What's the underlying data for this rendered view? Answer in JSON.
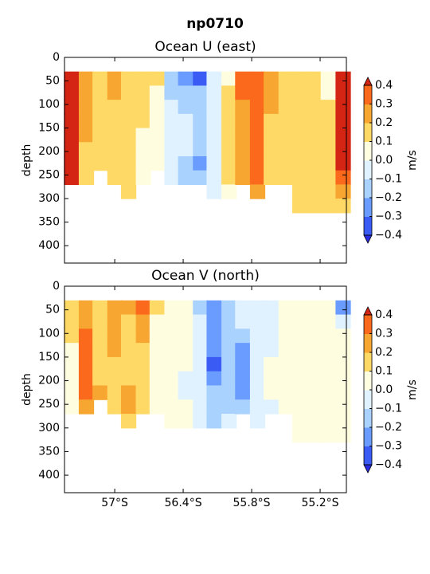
{
  "title": "np0710",
  "chart_data": [
    {
      "type": "contour",
      "title": "Ocean U (east)",
      "y_label": "depth",
      "colorbar_label": "m/s",
      "x": [
        -57.38,
        -57.25,
        -57.13,
        -57.0,
        -56.88,
        -56.75,
        -56.63,
        -56.5,
        -56.38,
        -56.25,
        -56.13,
        -56.0,
        -55.88,
        -55.75,
        -55.63,
        -55.5,
        -55.38,
        -55.25,
        -55.13,
        -55.0
      ],
      "depths": [
        30,
        60,
        90,
        120,
        150,
        180,
        210,
        240,
        270,
        300
      ],
      "values": [
        [
          0.45,
          0.45,
          0.45,
          0.45,
          0.45,
          0.45,
          0.45,
          0.45,
          null,
          null
        ],
        [
          0.25,
          0.25,
          0.25,
          0.25,
          0.25,
          0.15,
          0.15,
          0.15,
          null,
          null
        ],
        [
          0.15,
          0.15,
          0.15,
          0.15,
          0.15,
          0.15,
          0.15,
          null,
          null,
          null
        ],
        [
          0.25,
          0.25,
          0.15,
          0.15,
          0.15,
          0.15,
          0.15,
          0.15,
          null,
          null
        ],
        [
          0.15,
          0.15,
          0.15,
          0.15,
          0.15,
          0.15,
          0.15,
          0.15,
          0.15,
          null
        ],
        [
          0.15,
          0.15,
          0.15,
          0.15,
          0.05,
          0.05,
          0.05,
          0.05,
          null,
          null
        ],
        [
          0.15,
          0.05,
          0.05,
          0.05,
          0.05,
          0.05,
          0.05,
          null,
          null,
          null
        ],
        [
          -0.15,
          -0.15,
          -0.05,
          -0.05,
          -0.05,
          -0.05,
          -0.05,
          -0.05,
          null,
          null
        ],
        [
          -0.25,
          -0.15,
          -0.15,
          -0.05,
          -0.05,
          -0.05,
          -0.15,
          -0.15,
          null,
          null
        ],
        [
          -0.35,
          -0.15,
          -0.15,
          -0.15,
          -0.15,
          -0.15,
          -0.25,
          -0.15,
          null,
          null
        ],
        [
          -0.05,
          -0.05,
          -0.05,
          -0.05,
          -0.05,
          -0.05,
          -0.05,
          -0.05,
          -0.05,
          null
        ],
        [
          0.05,
          0.15,
          0.15,
          0.15,
          0.15,
          0.15,
          0.15,
          0.15,
          0.05,
          null
        ],
        [
          0.35,
          0.35,
          0.25,
          0.25,
          0.25,
          0.25,
          0.25,
          0.25,
          null,
          null
        ],
        [
          0.35,
          0.35,
          0.35,
          0.35,
          0.35,
          0.35,
          0.35,
          0.35,
          0.25,
          null
        ],
        [
          0.25,
          0.25,
          0.25,
          0.15,
          0.15,
          0.15,
          0.15,
          0.15,
          null,
          null
        ],
        [
          0.15,
          0.15,
          0.15,
          0.15,
          0.15,
          0.15,
          0.15,
          0.15,
          null,
          null
        ],
        [
          0.15,
          0.15,
          0.15,
          0.15,
          0.15,
          0.15,
          0.15,
          0.15,
          0.15,
          0.15
        ],
        [
          0.15,
          0.15,
          0.15,
          0.15,
          0.15,
          0.15,
          0.15,
          0.15,
          0.15,
          0.15
        ],
        [
          0.05,
          0.05,
          0.15,
          0.15,
          0.15,
          0.15,
          0.15,
          0.15,
          0.15,
          0.15
        ],
        [
          0.45,
          0.45,
          0.45,
          0.45,
          0.45,
          0.45,
          0.45,
          0.35,
          0.25,
          0.15
        ]
      ],
      "xlim": [
        -57.44,
        -54.97
      ],
      "xticks": [
        -57,
        -56.4,
        -55.8,
        -55.2
      ],
      "ylim": [
        0,
        437
      ],
      "y_inverted": true,
      "yticks": [
        0,
        50,
        100,
        150,
        200,
        250,
        300,
        350,
        400
      ],
      "cticks": [
        {
          "value": -0.4,
          "label": "−0.4"
        },
        {
          "value": -0.3,
          "label": "−0.3"
        },
        {
          "value": -0.2,
          "label": "−0.2"
        },
        {
          "value": -0.1,
          "label": "−0.1"
        },
        {
          "value": 0,
          "label": "0.0"
        },
        0.1,
        0.2,
        0.3,
        0.4
      ],
      "colors": [
        "#3a5cf5",
        "#6a9cff",
        "#aad2ff",
        "#e0f2ff",
        "#fffde0",
        "#ffd966",
        "#f8a632",
        "#fb6a1c"
      ],
      "under_color": "#2a2ae0",
      "over_color": "#d42414"
    },
    {
      "type": "contour",
      "title": "Ocean V (north)",
      "y_label": "depth",
      "colorbar_label": "m/s",
      "x": [
        -57.38,
        -57.25,
        -57.13,
        -57.0,
        -56.88,
        -56.75,
        -56.63,
        -56.5,
        -56.38,
        -56.25,
        -56.13,
        -56.0,
        -55.88,
        -55.75,
        -55.63,
        -55.5,
        -55.38,
        -55.25,
        -55.13,
        -55.0
      ],
      "depths": [
        30,
        60,
        90,
        120,
        150,
        180,
        210,
        240,
        270,
        300
      ],
      "values": [
        [
          0.15,
          0.15,
          0.15,
          0.05,
          0.05,
          0.05,
          0.05,
          0.05,
          null,
          null
        ],
        [
          0.25,
          0.25,
          0.35,
          0.35,
          0.35,
          0.35,
          0.35,
          0.25,
          null,
          null
        ],
        [
          0.15,
          0.15,
          0.15,
          0.15,
          0.15,
          0.15,
          0.25,
          null,
          null,
          null
        ],
        [
          0.25,
          0.25,
          0.25,
          0.25,
          0.15,
          0.15,
          0.15,
          0.15,
          null,
          null
        ],
        [
          0.25,
          0.15,
          0.15,
          0.15,
          0.15,
          0.15,
          0.25,
          0.25,
          0.15,
          null
        ],
        [
          0.35,
          0.25,
          0.25,
          0.15,
          0.15,
          0.15,
          0.15,
          0.15,
          null,
          null
        ],
        [
          0.15,
          0.05,
          0.05,
          0.05,
          0.05,
          0.05,
          0.05,
          0.05,
          null,
          null
        ],
        [
          0.05,
          0.05,
          0.05,
          0.05,
          0.05,
          0.05,
          0.05,
          0.05,
          0.05,
          null
        ],
        [
          0.05,
          0.05,
          0.05,
          0.05,
          0.05,
          -0.05,
          -0.05,
          0.05,
          0.05,
          null
        ],
        [
          -0.15,
          -0.05,
          -0.05,
          -0.05,
          -0.05,
          -0.05,
          -0.05,
          -0.05,
          -0.05,
          null
        ],
        [
          -0.25,
          -0.25,
          -0.25,
          -0.25,
          -0.35,
          -0.25,
          -0.15,
          -0.15,
          -0.15,
          null
        ],
        [
          -0.15,
          -0.15,
          -0.15,
          -0.15,
          -0.15,
          -0.15,
          -0.15,
          -0.15,
          -0.05,
          null
        ],
        [
          -0.05,
          -0.05,
          -0.15,
          -0.25,
          -0.25,
          -0.25,
          -0.25,
          -0.15,
          null,
          null
        ],
        [
          -0.05,
          -0.05,
          -0.05,
          -0.05,
          -0.05,
          -0.05,
          -0.05,
          -0.05,
          -0.05,
          null
        ],
        [
          -0.05,
          -0.05,
          -0.05,
          -0.05,
          0.05,
          0.05,
          0.05,
          -0.05,
          null,
          null
        ],
        [
          0.05,
          0.05,
          0.05,
          0.05,
          0.05,
          0.05,
          0.05,
          0.05,
          null,
          null
        ],
        [
          0.05,
          0.05,
          0.05,
          0.05,
          0.05,
          0.05,
          0.05,
          0.05,
          0.05,
          0.05
        ],
        [
          0.05,
          0.05,
          0.05,
          0.05,
          0.05,
          0.05,
          0.05,
          0.05,
          0.05,
          0.05
        ],
        [
          0.05,
          0.05,
          0.05,
          0.05,
          0.05,
          0.05,
          0.05,
          0.05,
          0.05,
          0.05
        ],
        [
          -0.25,
          -0.05,
          0.05,
          0.05,
          0.05,
          0.05,
          0.05,
          0.05,
          0.05,
          0.05
        ]
      ],
      "xlim": [
        -57.44,
        -54.97
      ],
      "xticks": [
        {
          "value": -57,
          "label": "57°S"
        },
        {
          "value": -56.4,
          "label": "56.4°S"
        },
        {
          "value": -55.8,
          "label": "55.8°S"
        },
        {
          "value": -55.2,
          "label": "55.2°S"
        }
      ],
      "ylim": [
        0,
        437
      ],
      "y_inverted": true,
      "yticks": [
        0,
        50,
        100,
        150,
        200,
        250,
        300,
        350,
        400
      ],
      "cticks": [
        {
          "value": -0.4,
          "label": "−0.4"
        },
        {
          "value": -0.3,
          "label": "−0.3"
        },
        {
          "value": -0.2,
          "label": "−0.2"
        },
        {
          "value": -0.1,
          "label": "−0.1"
        },
        {
          "value": 0,
          "label": "0.0"
        },
        0.1,
        0.2,
        0.3,
        0.4
      ],
      "colors": [
        "#3a5cf5",
        "#6a9cff",
        "#aad2ff",
        "#e0f2ff",
        "#fffde0",
        "#ffd966",
        "#f8a632",
        "#fb6a1c"
      ],
      "under_color": "#2a2ae0",
      "over_color": "#d42414"
    }
  ]
}
